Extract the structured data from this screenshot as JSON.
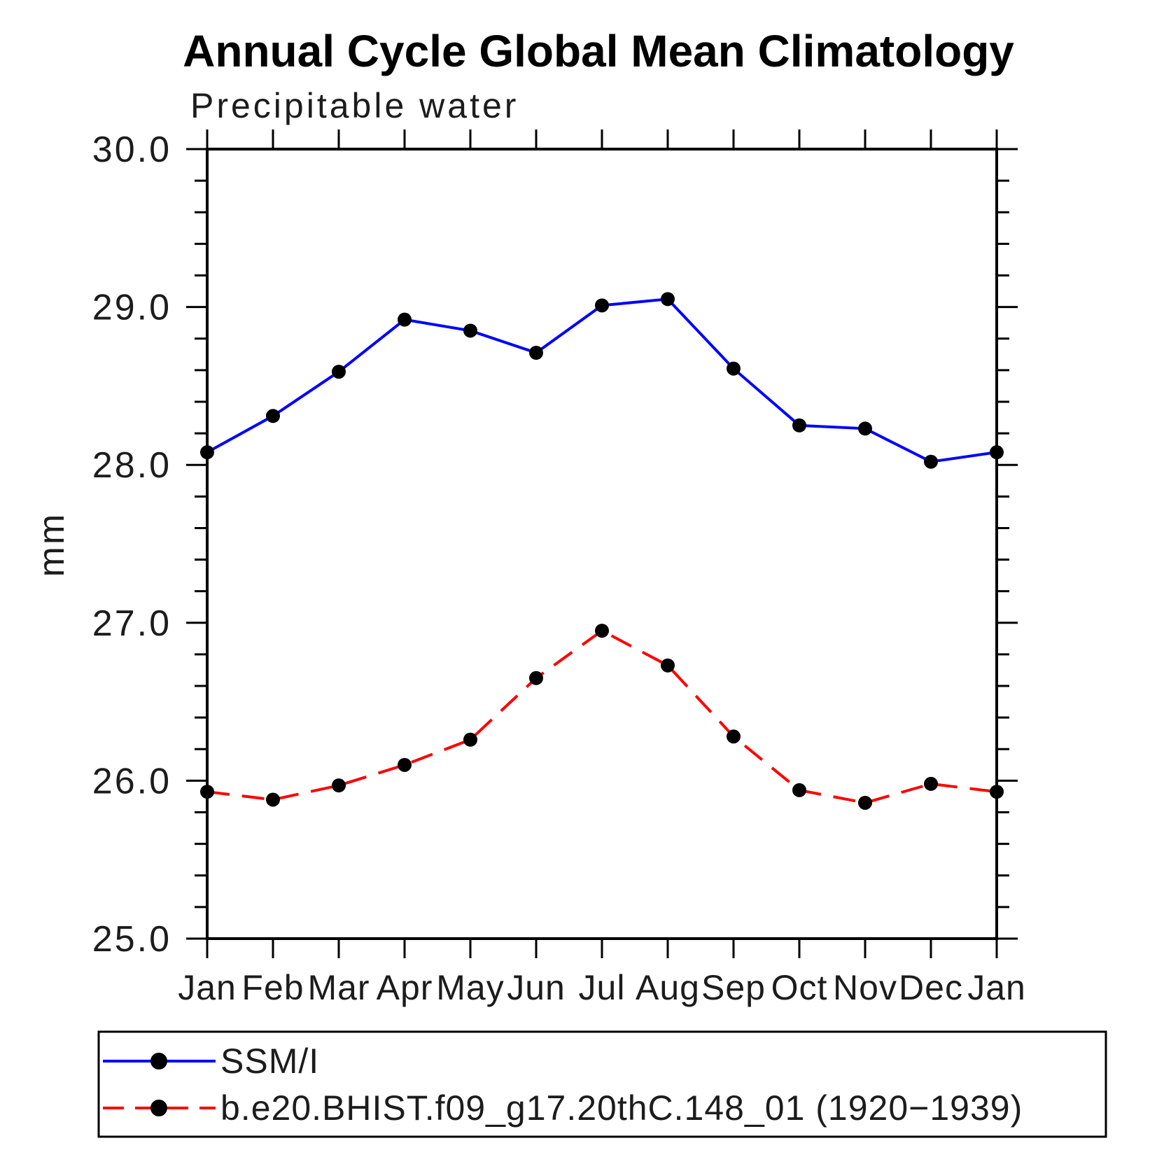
{
  "title": "Annual Cycle Global Mean Climatology",
  "subtitle": "Precipitable water",
  "colors": {
    "series1": "#0000ff",
    "series2": "#ff0000",
    "marker": "#000000",
    "axis": "#000000"
  },
  "chart_data": {
    "type": "line",
    "title": "Annual Cycle Global Mean Climatology",
    "subtitle": "Precipitable water",
    "xlabel": "",
    "ylabel": "mm",
    "ylim": [
      25.0,
      30.0
    ],
    "ytick_major_values": [
      25.0,
      26.0,
      27.0,
      28.0,
      29.0,
      30.0
    ],
    "ytick_labels": [
      "25.0",
      "26.0",
      "27.0",
      "28.0",
      "29.0",
      "30.0"
    ],
    "ytick_minor_step": 0.2,
    "grid": false,
    "legend_position": "bottom-left-box",
    "categories": [
      "Jan",
      "Feb",
      "Mar",
      "Apr",
      "May",
      "Jun",
      "Jul",
      "Aug",
      "Sep",
      "Oct",
      "Nov",
      "Dec",
      "Jan"
    ],
    "series": [
      {
        "name": "SSM/I",
        "line_style": "solid",
        "color": "#0000ff",
        "marker": "filled-circle",
        "marker_color": "#000000",
        "values": [
          28.08,
          28.31,
          28.59,
          28.92,
          28.85,
          28.71,
          29.01,
          29.05,
          28.61,
          28.25,
          28.23,
          28.02,
          28.08
        ]
      },
      {
        "name": "b.e20.BHIST.f09_g17.20thC.148_01 (1920−1939)",
        "line_style": "dashed",
        "color": "#ff0000",
        "marker": "filled-circle",
        "marker_color": "#000000",
        "values": [
          25.93,
          25.88,
          25.97,
          26.1,
          26.26,
          26.65,
          26.95,
          26.73,
          26.28,
          25.94,
          25.86,
          25.98,
          25.93
        ]
      }
    ]
  }
}
